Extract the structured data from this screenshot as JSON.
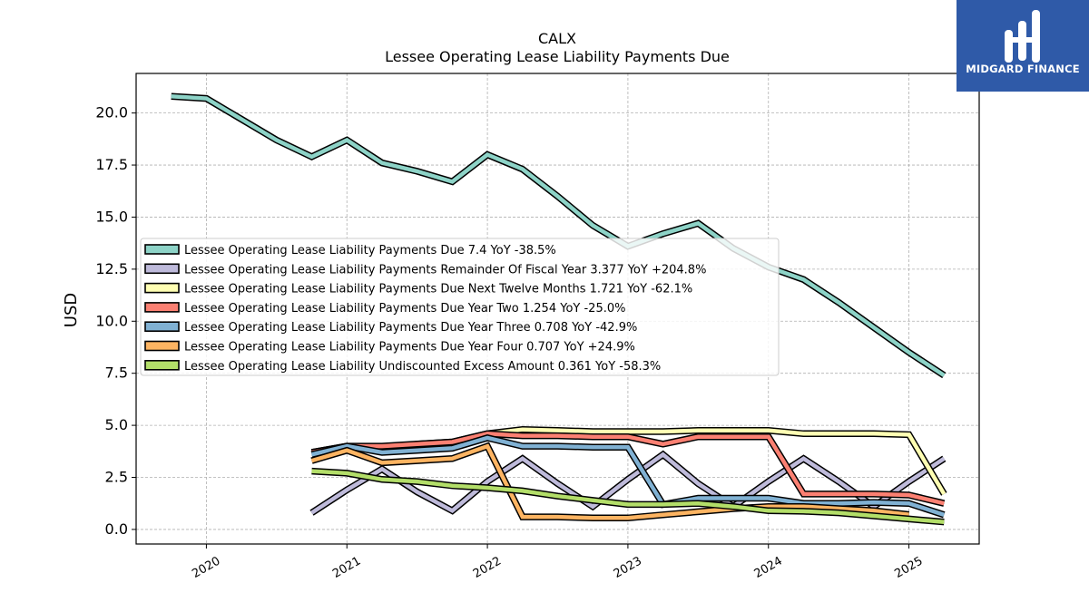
{
  "chart_data": {
    "type": "line",
    "title": "CALX",
    "subtitle": "Lessee Operating Lease Liability Payments Due",
    "ylabel": "USD",
    "xlabel": "",
    "ylim": [
      -0.7,
      21.9
    ],
    "xlim": [
      2019.5,
      2025.5
    ],
    "x_ticks": [
      2020,
      2021,
      2022,
      2023,
      2024,
      2025
    ],
    "x_tick_labels": [
      "2020",
      "2021",
      "2022",
      "2023",
      "2024",
      "2025"
    ],
    "y_ticks": [
      0,
      2.5,
      5,
      7.5,
      10,
      12.5,
      15,
      17.5,
      20
    ],
    "y_tick_labels": [
      "0.0",
      "2.5",
      "5.0",
      "7.5",
      "10.0",
      "12.5",
      "15.0",
      "17.5",
      "20.0"
    ],
    "grid": true,
    "legend_position": "center-left",
    "series": [
      {
        "name": "Lessee Operating Lease Liability Payments Due",
        "legend": "Lessee Operating Lease Liability Payments Due  7.4 YoY -38.5%",
        "color": "#8dd3c7",
        "x": [
          2019.75,
          2020.0,
          2020.25,
          2020.5,
          2020.75,
          2021.0,
          2021.25,
          2021.5,
          2021.75,
          2022.0,
          2022.25,
          2022.5,
          2022.75,
          2023.0,
          2023.25,
          2023.5,
          2023.75,
          2024.0,
          2024.25,
          2024.5,
          2024.75,
          2025.0,
          2025.25
        ],
        "y": [
          20.8,
          20.7,
          19.7,
          18.7,
          17.9,
          18.7,
          17.6,
          17.2,
          16.7,
          18.0,
          17.3,
          16.0,
          14.6,
          13.6,
          14.2,
          14.7,
          13.5,
          12.6,
          12.0,
          10.9,
          9.7,
          8.5,
          7.4
        ]
      },
      {
        "name": "Lessee Operating Lease Liability Payments Remainder Of Fiscal Year",
        "legend": "Lessee Operating Lease Liability Payments Remainder Of Fiscal Year  3.377 YoY +204.8%",
        "color": "#bebada",
        "x": [
          2020.75,
          2021.0,
          2021.25,
          2021.5,
          2021.75,
          2022.0,
          2022.25,
          2022.5,
          2022.75,
          2023.0,
          2023.25,
          2023.5,
          2023.75,
          2024.0,
          2024.25,
          2024.5,
          2024.75,
          2025.0,
          2025.25
        ],
        "y": [
          0.8,
          1.9,
          2.9,
          1.8,
          0.9,
          2.3,
          3.4,
          2.2,
          1.1,
          2.4,
          3.6,
          2.2,
          1.1,
          2.3,
          3.4,
          2.3,
          1.1,
          2.3,
          3.4
        ]
      },
      {
        "name": "Lessee Operating Lease Liability Payments Due Next Twelve Months",
        "legend": "Lessee Operating Lease Liability Payments Due Next Twelve Months  1.721 YoY -62.1%",
        "color": "#ffffb3",
        "x": [
          2020.75,
          2021.0,
          2021.25,
          2021.5,
          2021.75,
          2022.0,
          2022.25,
          2022.5,
          2022.75,
          2023.0,
          2023.25,
          2023.5,
          2023.75,
          2024.0,
          2024.25,
          2024.5,
          2024.75,
          2025.0,
          2025.25
        ],
        "y": [
          3.7,
          4.0,
          3.9,
          4.1,
          4.2,
          4.6,
          4.8,
          4.75,
          4.7,
          4.7,
          4.7,
          4.75,
          4.75,
          4.75,
          4.6,
          4.6,
          4.6,
          4.55,
          1.7
        ]
      },
      {
        "name": "Lessee Operating Lease Liability Payments Due Year Two",
        "legend": "Lessee Operating Lease Liability Payments Due Year Two  1.254 YoY -25.0%",
        "color": "#fb8072",
        "x": [
          2020.75,
          2021.0,
          2021.25,
          2021.5,
          2021.75,
          2022.0,
          2022.25,
          2022.5,
          2022.75,
          2023.0,
          2023.25,
          2023.5,
          2023.75,
          2024.0,
          2024.25,
          2024.5,
          2024.75,
          2025.0,
          2025.25
        ],
        "y": [
          3.7,
          4.0,
          4.0,
          4.1,
          4.2,
          4.6,
          4.5,
          4.5,
          4.45,
          4.45,
          4.1,
          4.45,
          4.45,
          4.45,
          1.7,
          1.7,
          1.7,
          1.65,
          1.25
        ]
      },
      {
        "name": "Lessee Operating Lease Liability Payments Due Year Three",
        "legend": "Lessee Operating Lease Liability Payments Due Year Three  0.708 YoY -42.9%",
        "color": "#80b1d3",
        "x": [
          2020.75,
          2021.0,
          2021.25,
          2021.5,
          2021.75,
          2022.0,
          2022.25,
          2022.5,
          2022.75,
          2023.0,
          2023.25,
          2023.5,
          2023.75,
          2024.0,
          2024.25,
          2024.5,
          2024.75,
          2025.0,
          2025.25
        ],
        "y": [
          3.6,
          4.0,
          3.7,
          3.8,
          3.9,
          4.4,
          4.0,
          4.0,
          3.95,
          3.95,
          1.2,
          1.5,
          1.5,
          1.5,
          1.25,
          1.25,
          1.3,
          1.25,
          0.7
        ]
      },
      {
        "name": "Lessee Operating Lease Liability Payments Due Year Four",
        "legend": "Lessee Operating Lease Liability Payments Due Year Four  0.707 YoY +24.9%",
        "color": "#fdb462",
        "x": [
          2020.75,
          2021.0,
          2021.25,
          2021.5,
          2021.75,
          2022.0,
          2022.25,
          2022.5,
          2022.75,
          2023.0,
          2023.25,
          2023.5,
          2023.75,
          2024.0,
          2024.25,
          2024.5,
          2024.75,
          2025.0
        ],
        "y": [
          3.3,
          3.8,
          3.2,
          3.3,
          3.4,
          4.0,
          0.6,
          0.6,
          0.55,
          0.55,
          0.7,
          0.85,
          1.0,
          1.1,
          1.1,
          1.0,
          0.9,
          0.71
        ]
      },
      {
        "name": "Lessee Operating Lease Liability Undiscounted Excess Amount",
        "legend": "Lessee Operating Lease Liability Undiscounted Excess Amount  0.361 YoY -58.3%",
        "color": "#b3de69",
        "x": [
          2020.75,
          2021.0,
          2021.25,
          2021.5,
          2021.75,
          2022.0,
          2022.25,
          2022.5,
          2022.75,
          2023.0,
          2023.25,
          2023.5,
          2023.75,
          2024.0,
          2024.25,
          2024.5,
          2024.75,
          2025.0,
          2025.25
        ],
        "y": [
          2.8,
          2.7,
          2.4,
          2.3,
          2.1,
          2.0,
          1.85,
          1.6,
          1.4,
          1.2,
          1.2,
          1.25,
          1.1,
          0.9,
          0.87,
          0.8,
          0.65,
          0.5,
          0.36
        ]
      }
    ]
  },
  "logo": {
    "text": "MIDGARD FINANCE",
    "background": "#2f5aa8"
  }
}
